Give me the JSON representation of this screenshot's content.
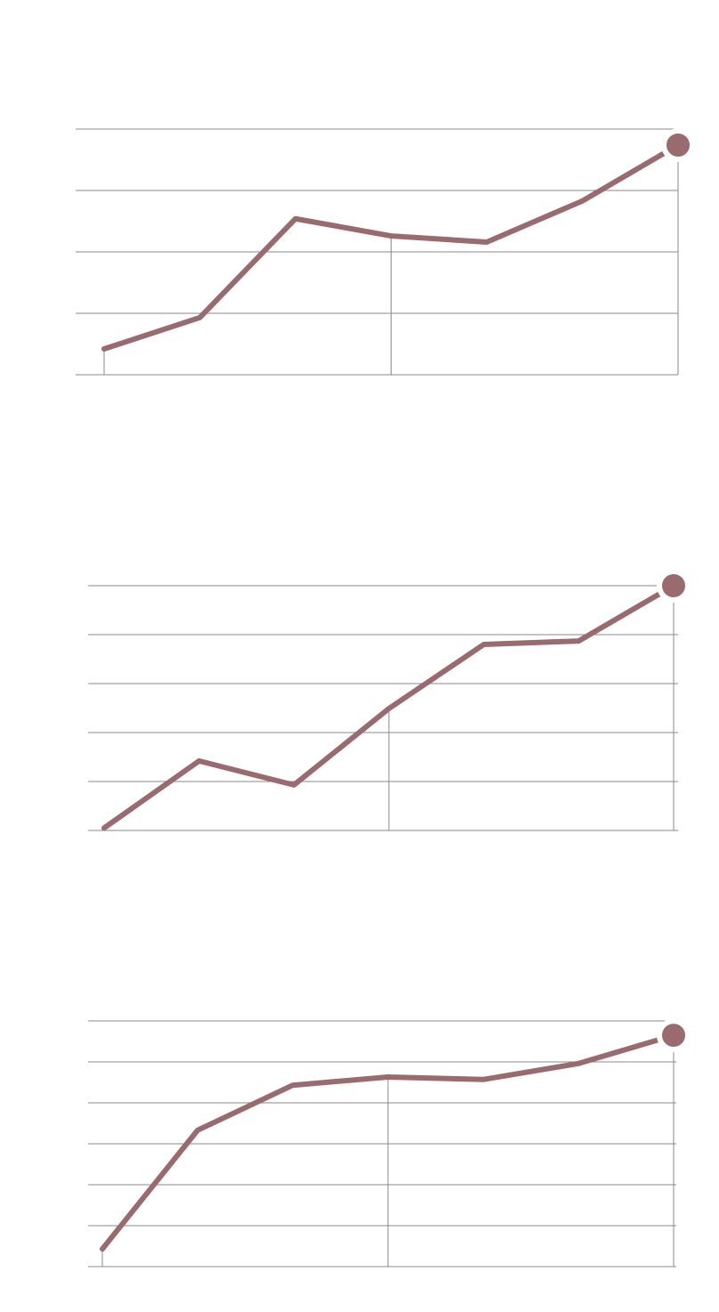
{
  "chart_data": [
    {
      "type": "line",
      "categories": [
        null,
        null,
        null,
        null,
        null,
        null,
        null
      ],
      "values": [
        0.42,
        0.93,
        2.54,
        2.26,
        2.16,
        2.83,
        3.74
      ],
      "color": "#9a6b6e",
      "ylim": [
        0,
        4
      ],
      "yticks": [
        0,
        1,
        2,
        3,
        4
      ],
      "grid": true
    },
    {
      "type": "line",
      "categories": [
        null,
        null,
        null,
        null,
        null,
        null,
        null
      ],
      "values": [
        0.05,
        1.42,
        0.93,
        2.49,
        3.8,
        3.87,
        5.0
      ],
      "color": "#9a6b6e",
      "ylim": [
        0,
        5
      ],
      "yticks": [
        0,
        1,
        2,
        3,
        4,
        5
      ],
      "grid": true
    },
    {
      "type": "line",
      "categories": [
        null,
        null,
        null,
        null,
        null,
        null,
        null
      ],
      "values": [
        0.43,
        3.33,
        4.43,
        4.63,
        4.57,
        4.96,
        5.65
      ],
      "color": "#9a6b6e",
      "ylim": [
        0,
        6
      ],
      "yticks": [
        0,
        1,
        2,
        3,
        4,
        5,
        6
      ],
      "grid": true
    }
  ]
}
